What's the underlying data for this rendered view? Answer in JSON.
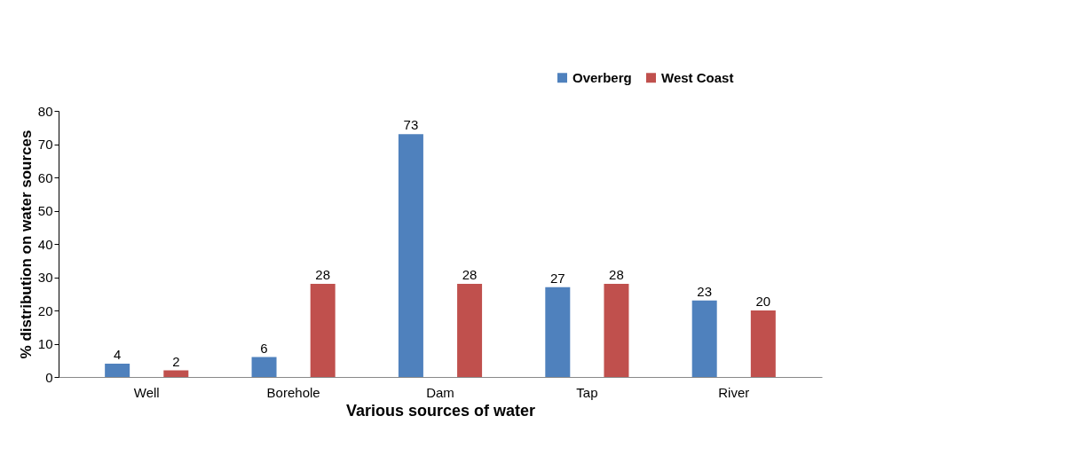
{
  "chart_data": {
    "type": "bar",
    "xlabel": "Various sources of water",
    "ylabel": "% distribution on water sources",
    "categories": [
      "Well",
      "Borehole",
      "Dam",
      "Tap",
      "River"
    ],
    "series": [
      {
        "name": "Overberg",
        "color": "#4f81bd",
        "values": [
          4,
          6,
          73,
          27,
          23
        ]
      },
      {
        "name": "West Coast",
        "color": "#c0504d",
        "values": [
          2,
          28,
          28,
          28,
          20
        ]
      }
    ],
    "ylim": [
      0,
      80
    ],
    "yticks": [
      0,
      10,
      20,
      30,
      40,
      50,
      60,
      70,
      80
    ],
    "grid": false,
    "legend": "top right",
    "data_labels": true
  }
}
